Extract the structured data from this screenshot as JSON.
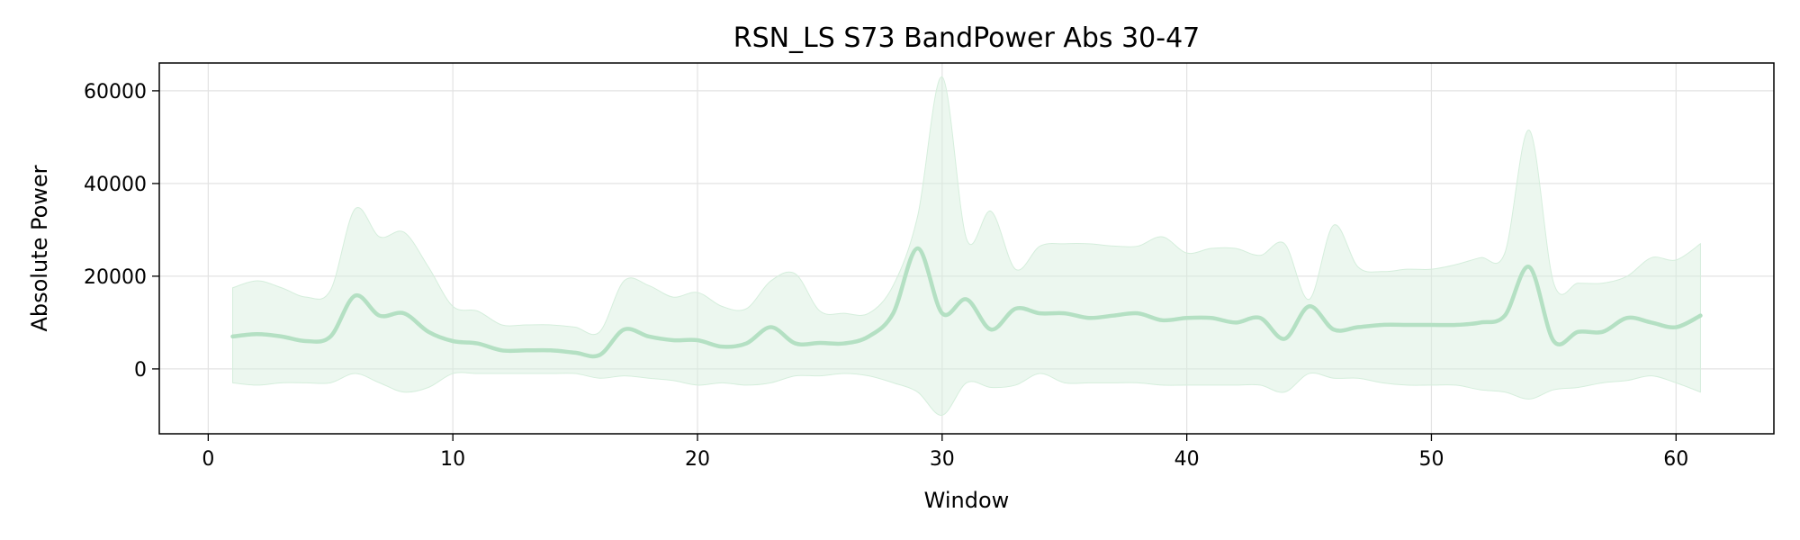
{
  "chart_data": {
    "type": "line",
    "title": "RSN_LS S73 BandPower Abs 30-47",
    "xlabel": "Window",
    "ylabel": "Absolute Power",
    "xlim": [
      -2,
      64
    ],
    "ylim": [
      -14000,
      66000
    ],
    "xticks": [
      0,
      10,
      20,
      30,
      40,
      50,
      60
    ],
    "yticks": [
      0,
      20000,
      40000,
      60000
    ],
    "xtick_labels": [
      "0",
      "10",
      "20",
      "30",
      "40",
      "50",
      "60"
    ],
    "ytick_labels": [
      "0",
      "20000",
      "40000",
      "60000"
    ],
    "grid": true,
    "legend": false,
    "colors": {
      "line": "#b4e0c3",
      "band": "#d5eedc"
    },
    "series": [
      {
        "x": [
          1,
          2,
          3,
          4,
          5,
          6,
          7,
          8,
          9,
          10,
          11,
          12,
          13,
          14,
          15,
          16,
          17,
          18,
          19,
          20,
          21,
          22,
          23,
          24,
          25,
          26,
          27,
          28,
          29,
          30,
          31,
          32,
          33,
          34,
          35,
          36,
          37,
          38,
          39,
          40,
          41,
          42,
          43,
          44,
          45,
          46,
          47,
          48,
          49,
          50,
          51,
          52,
          53,
          54,
          55,
          56,
          57,
          58,
          59,
          60,
          61
        ],
        "mean": [
          7000,
          7500,
          7000,
          6000,
          7000,
          15800,
          11500,
          12000,
          8000,
          6000,
          5500,
          4000,
          4000,
          4000,
          3500,
          3000,
          8500,
          7000,
          6200,
          6200,
          4800,
          5500,
          9000,
          5500,
          5600,
          5500,
          7000,
          12000,
          26000,
          12000,
          15000,
          8500,
          13000,
          12000,
          12000,
          11000,
          11500,
          12000,
          10500,
          11000,
          11000,
          10000,
          11000,
          6500,
          13500,
          8500,
          9000,
          9500,
          9500,
          9500,
          9500,
          10000,
          11500,
          22000,
          6000,
          8000,
          8000,
          11000,
          10000,
          9000,
          11500
        ],
        "upper": [
          17500,
          19000,
          17500,
          15500,
          17000,
          34500,
          28500,
          29500,
          22000,
          13500,
          12500,
          9500,
          9500,
          9500,
          9000,
          8000,
          19000,
          18000,
          15500,
          16500,
          13500,
          13000,
          19000,
          20500,
          12500,
          12000,
          12000,
          18000,
          33000,
          63000,
          28000,
          34000,
          21500,
          26500,
          27000,
          27000,
          26500,
          26500,
          28500,
          25000,
          26000,
          26000,
          24500,
          27000,
          15000,
          31000,
          22000,
          21000,
          21500,
          21500,
          22500,
          24000,
          25000,
          51500,
          18500,
          18500,
          18500,
          20000,
          24000,
          23500,
          27000
        ],
        "lower": [
          -3000,
          -3500,
          -3000,
          -3000,
          -3000,
          -1000,
          -3000,
          -5000,
          -4000,
          -1000,
          -1000,
          -1000,
          -1000,
          -1000,
          -1000,
          -2000,
          -1500,
          -2000,
          -2500,
          -3500,
          -3000,
          -3500,
          -3000,
          -1500,
          -1500,
          -1000,
          -1500,
          -3000,
          -5000,
          -10000,
          -3000,
          -4000,
          -3500,
          -1000,
          -3000,
          -3000,
          -3000,
          -3000,
          -3500,
          -3500,
          -3500,
          -3500,
          -3500,
          -5000,
          -1000,
          -2000,
          -2000,
          -3000,
          -3500,
          -3500,
          -3500,
          -4500,
          -5000,
          -6500,
          -4500,
          -4000,
          -3000,
          -2500,
          -1500,
          -3000,
          -5000
        ]
      }
    ]
  }
}
